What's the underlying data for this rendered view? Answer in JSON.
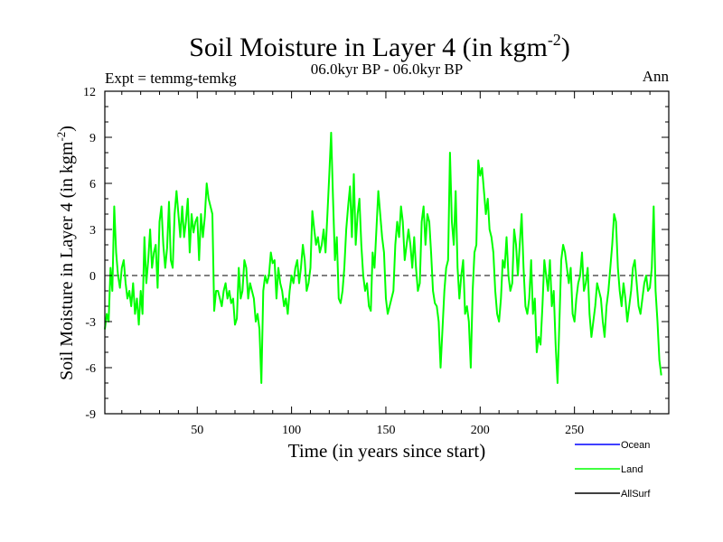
{
  "chart_data": {
    "type": "line",
    "title": "Soil Moisture in Layer 4 (in kgm",
    "title_sup": "-2",
    "title_close": ")",
    "subtitle_left": "Expt = temmg-temkg",
    "subtitle_center": "06.0kyr BP - 06.0kyr BP",
    "subtitle_right": "Ann",
    "xlabel": "Time (in years since start)",
    "ylabel": "Soil Moisture in Layer 4 (in kgm",
    "ylabel_sup": "-2",
    "ylabel_close": ")",
    "xlim": [
      1,
      300
    ],
    "ylim": [
      -9,
      12
    ],
    "x_ticks": [
      50,
      100,
      150,
      200,
      250
    ],
    "y_ticks": [
      12,
      9,
      6,
      3,
      0,
      -3,
      -6,
      -9
    ],
    "zero_line": 0,
    "legend": [
      "Ocean",
      "Land",
      "AllSurf"
    ],
    "colors": {
      "Ocean": "#0000ff",
      "Land": "#00ff00",
      "AllSurf": "#000000"
    },
    "series": [
      {
        "name": "Land",
        "x_start": 1,
        "values": [
          -3.5,
          -2.5,
          -3.0,
          0.5,
          -1.0,
          4.5,
          1.5,
          0.0,
          -0.8,
          0.5,
          1.0,
          -0.5,
          -1.5,
          -1.0,
          -2.0,
          -0.5,
          -2.5,
          -1.5,
          -3.2,
          -1.0,
          -2.5,
          2.5,
          -0.5,
          1.0,
          3.0,
          0.5,
          1.5,
          2.0,
          -0.8,
          3.5,
          4.5,
          2.0,
          0.5,
          1.8,
          4.8,
          1.0,
          0.5,
          4.0,
          5.5,
          4.0,
          2.5,
          4.5,
          2.5,
          3.5,
          5.0,
          1.5,
          4.0,
          2.8,
          3.5,
          3.8,
          1.0,
          4.0,
          2.5,
          3.8,
          6.0,
          5.0,
          4.5,
          4.0,
          -2.3,
          -1.0,
          -1.0,
          -1.5,
          -2.0,
          -1.0,
          -0.5,
          -1.5,
          -1.0,
          -1.8,
          -1.5,
          -3.2,
          -2.8,
          0.5,
          -1.5,
          -1.0,
          1.0,
          0.5,
          -1.5,
          -0.5,
          -1.0,
          -1.5,
          -3.0,
          -2.5,
          -3.5,
          -7.0,
          -1.0,
          0.0,
          -0.5,
          0.0,
          1.5,
          0.8,
          1.0,
          -1.5,
          0.5,
          -0.5,
          -1.0,
          -2.0,
          -1.5,
          -2.5,
          -1.0,
          0.0,
          -0.5,
          0.5,
          1.0,
          -0.5,
          0.5,
          2.0,
          1.0,
          -1.0,
          -0.5,
          0.5,
          4.2,
          3.0,
          2.0,
          2.5,
          1.5,
          2.0,
          3.0,
          1.5,
          4.0,
          6.5,
          9.3,
          5.0,
          1.0,
          2.5,
          -1.5,
          -1.8,
          -1.0,
          0.5,
          3.0,
          4.5,
          5.8,
          2.5,
          6.6,
          2.0,
          4.0,
          5.0,
          2.0,
          0.0,
          -1.0,
          -0.5,
          -2.0,
          -2.3,
          1.5,
          0.5,
          3.0,
          5.5,
          4.0,
          2.5,
          1.5,
          -1.5,
          -2.5,
          -2.0,
          -1.5,
          -1.0,
          2.0,
          3.5,
          2.5,
          4.5,
          3.5,
          1.0,
          2.0,
          3.0,
          2.0,
          0.5,
          2.5,
          0.5,
          -1.0,
          -0.5,
          3.5,
          4.5,
          2.0,
          4.0,
          3.5,
          1.5,
          -1.0,
          -1.8,
          -2.0,
          -3.0,
          -6.0,
          -3.5,
          -1.0,
          0.5,
          1.0,
          8.0,
          3.5,
          2.0,
          5.5,
          0.5,
          -1.5,
          0.0,
          1.0,
          -2.5,
          -2.0,
          -3.0,
          -6.0,
          -1.0,
          1.5,
          2.0,
          7.5,
          6.5,
          7.0,
          5.5,
          4.0,
          5.0,
          3.0,
          2.5,
          1.5,
          -1.0,
          -2.5,
          -3.0,
          -1.5,
          1.0,
          0.5,
          2.5,
          0.0,
          -1.0,
          -0.5,
          3.0,
          2.0,
          0.0,
          2.0,
          4.0,
          0.5,
          -2.0,
          -2.5,
          -1.5,
          1.0,
          -2.5,
          -1.5,
          -5.0,
          -4.0,
          -4.5,
          -2.0,
          1.0,
          0.0,
          -1.0,
          1.0,
          -2.0,
          -1.0,
          -4.5,
          -7.0,
          -3.0,
          1.0,
          2.0,
          1.5,
          0.5,
          -0.5,
          0.5,
          -2.5,
          -3.0,
          -1.5,
          -0.5,
          0.0,
          1.5,
          -1.0,
          -0.5,
          0.5,
          -2.5,
          -4.0,
          -3.0,
          -2.0,
          -0.5,
          -1.0,
          -1.5,
          -3.0,
          -4.0,
          -2.0,
          -1.0,
          0.5,
          2.0,
          4.0,
          3.5,
          0.5,
          -1.0,
          -2.0,
          -0.5,
          -1.5,
          -3.0,
          -2.0,
          -1.0,
          0.5,
          1.0,
          -0.5,
          -2.0,
          -2.5,
          -1.5,
          -0.5,
          0.0,
          -1.0,
          -0.8,
          0.5,
          4.5,
          -1.0,
          -3.0,
          -5.5,
          -6.5
        ]
      }
    ]
  }
}
